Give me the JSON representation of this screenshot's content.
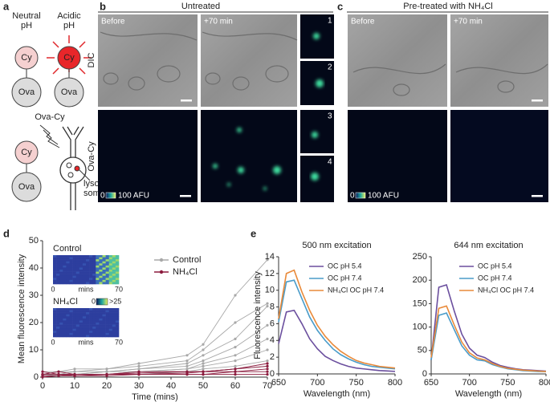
{
  "panel_a": {
    "label": "a",
    "neutral": [
      "Neutral",
      "pH"
    ],
    "acidic": [
      "Acidic",
      "pH"
    ],
    "cy": "Cy",
    "ova": "Ova",
    "ova_cy": "Ova-Cy",
    "lysosomes": [
      "lyso-",
      "somes"
    ]
  },
  "panel_b": {
    "label": "b",
    "title": "Untreated",
    "row_labels": [
      "DIC",
      "Ova-Cy"
    ],
    "image_labels": [
      "Before",
      "+70 min"
    ],
    "inset_numbers": [
      "1",
      "2",
      "3",
      "4"
    ],
    "colorbar": [
      "0",
      "100 AFU"
    ]
  },
  "panel_c": {
    "label": "c",
    "title": "Pre-treated with NH₄Cl",
    "image_labels": [
      "Before",
      "+70 min"
    ],
    "colorbar": [
      "0",
      "100 AFU"
    ]
  },
  "panel_d": {
    "label": "d",
    "insets": {
      "titles": [
        "Control",
        "NH₄Cl"
      ],
      "axis": [
        "0",
        "mins",
        "70"
      ],
      "colorbar": [
        "0",
        ">25"
      ]
    }
  },
  "panel_e": {
    "label": "e"
  },
  "chart_data": [
    {
      "type": "line",
      "xlabel": "Time (mins)",
      "ylabel": "Mean fluorescence intensity",
      "x": [
        0,
        5,
        10,
        20,
        30,
        45,
        50,
        60,
        70
      ],
      "xlim": [
        0,
        70
      ],
      "xticks": [
        0,
        10,
        20,
        30,
        40,
        50,
        60,
        70
      ],
      "ylim": [
        0,
        50
      ],
      "yticks": [
        0,
        10,
        20,
        30,
        40,
        50
      ],
      "series": [
        {
          "name": "Control",
          "color": "#a8a8a8",
          "values": [
            [
              2,
              2,
              3,
              3,
              5,
              8,
              12,
              30,
              43
            ],
            [
              1,
              2,
              2,
              3,
              4,
              6,
              10,
              20,
              27
            ],
            [
              1,
              1,
              2,
              2,
              3,
              5,
              8,
              14,
              26
            ],
            [
              1,
              1,
              1,
              2,
              3,
              4,
              6,
              11,
              19
            ],
            [
              0.5,
              1,
              1,
              2,
              2,
              3,
              5,
              8,
              14
            ],
            [
              1,
              1,
              1,
              1,
              2,
              3,
              4,
              6,
              10
            ],
            [
              0.5,
              0.5,
              1,
              1,
              2,
              2,
              3,
              4,
              6
            ],
            [
              0.5,
              1,
              0.5,
              1,
              1,
              2,
              2,
              3,
              4
            ]
          ]
        },
        {
          "name": "NH₄Cl",
          "color": "#8b1a3d",
          "values": [
            [
              2,
              1,
              1,
              1,
              1.5,
              2,
              2,
              2,
              3
            ],
            [
              1,
              1,
              0.5,
              1,
              1,
              1.5,
              2,
              3,
              5
            ],
            [
              0.5,
              0.5,
              1,
              1,
              1,
              1,
              1,
              2,
              2
            ],
            [
              0,
              0.5,
              0.5,
              0.5,
              1,
              1,
              1,
              1,
              1
            ],
            [
              1,
              2,
              1,
              1,
              2,
              2,
              2,
              3,
              4
            ]
          ]
        }
      ]
    },
    {
      "type": "line",
      "title": "500 nm excitation",
      "xlabel": "Wavelength (nm)",
      "ylabel": "Fluorescence intensity",
      "x": [
        650,
        660,
        670,
        680,
        690,
        700,
        710,
        720,
        730,
        740,
        750,
        760,
        770,
        780,
        790,
        800
      ],
      "xlim": [
        650,
        800
      ],
      "xticks": [
        650,
        700,
        750,
        800
      ],
      "ylim": [
        0,
        14
      ],
      "yticks": [
        0,
        2,
        4,
        6,
        8,
        10,
        12,
        14
      ],
      "series": [
        {
          "name": "OC pH 5.4",
          "color": "#6b4f9e",
          "values": [
            3.6,
            7.4,
            7.6,
            6.0,
            4.2,
            3.0,
            2.1,
            1.6,
            1.2,
            0.9,
            0.7,
            0.6,
            0.5,
            0.4,
            0.35,
            0.3
          ]
        },
        {
          "name": "OC pH 7.4",
          "color": "#4a9cc9",
          "values": [
            6.2,
            11.0,
            11.2,
            9.0,
            6.8,
            5.2,
            4.0,
            3.0,
            2.3,
            1.8,
            1.4,
            1.1,
            0.9,
            0.8,
            0.7,
            0.6
          ]
        },
        {
          "name": "NH₄Cl OC pH 7.4",
          "color": "#e98a3a",
          "values": [
            6.6,
            12.0,
            12.4,
            9.8,
            7.6,
            5.8,
            4.5,
            3.5,
            2.7,
            2.1,
            1.6,
            1.3,
            1.1,
            0.9,
            0.8,
            0.7
          ]
        }
      ]
    },
    {
      "type": "line",
      "title": "644 nm excitation",
      "xlabel": "Wavelength (nm)",
      "x": [
        650,
        660,
        670,
        680,
        690,
        700,
        710,
        720,
        730,
        740,
        750,
        760,
        770,
        780,
        790,
        800
      ],
      "xlim": [
        650,
        800
      ],
      "xticks": [
        650,
        700,
        750,
        800
      ],
      "ylim": [
        0,
        250
      ],
      "yticks": [
        0,
        50,
        100,
        150,
        200,
        250
      ],
      "series": [
        {
          "name": "OC pH 5.4",
          "color": "#6b4f9e",
          "values": [
            30,
            185,
            190,
            135,
            85,
            55,
            40,
            35,
            25,
            18,
            14,
            11,
            9,
            8,
            7,
            6
          ]
        },
        {
          "name": "OC pH 7.4",
          "color": "#4a9cc9",
          "values": [
            30,
            125,
            130,
            95,
            60,
            40,
            30,
            28,
            20,
            15,
            11,
            9,
            7,
            6,
            5,
            5
          ]
        },
        {
          "name": "NH₄Cl OC pH 7.4",
          "color": "#e98a3a",
          "values": [
            35,
            140,
            145,
            105,
            68,
            45,
            34,
            30,
            22,
            16,
            12,
            10,
            8,
            7,
            6,
            5
          ]
        }
      ]
    }
  ]
}
